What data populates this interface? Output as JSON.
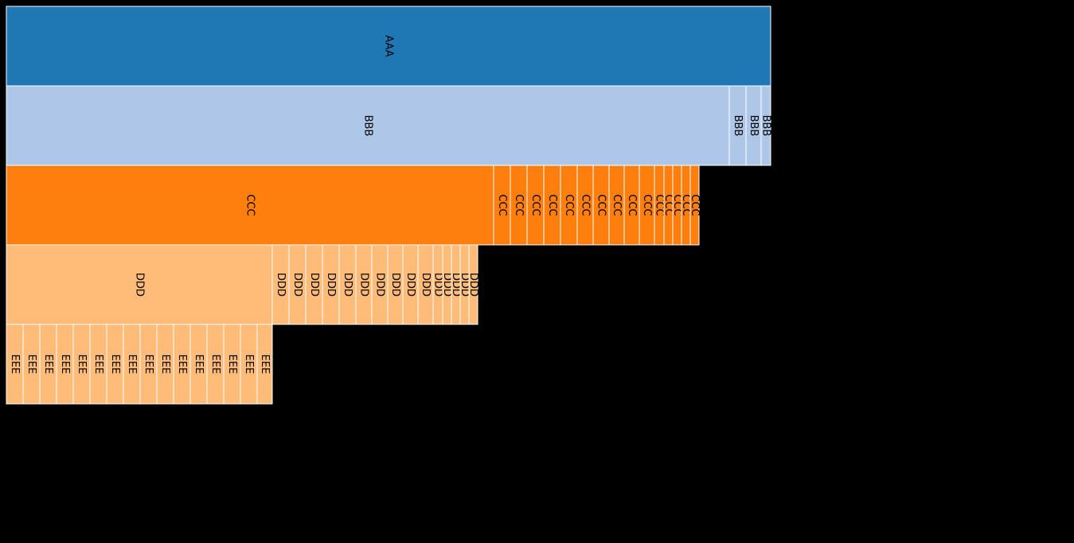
{
  "chart_data": {
    "type": "icicle",
    "colors": [
      "#1f77b4",
      "#aec7e8",
      "#ff7f0e",
      "#ffbb78"
    ],
    "levels": [
      {
        "name": "AAA",
        "color_index": 0,
        "nodes": [
          {
            "label": "AAA",
            "value": 960,
            "parent": null
          }
        ]
      },
      {
        "name": "BBB",
        "color_index": 1,
        "nodes": [
          {
            "label": "BBB",
            "value": 908,
            "parent": 0
          },
          {
            "label": "BBB",
            "value": 21,
            "parent": 0
          },
          {
            "label": "BBB",
            "value": 19,
            "parent": 0
          },
          {
            "label": "BBB",
            "value": 12,
            "parent": 0
          }
        ]
      },
      {
        "name": "CCC",
        "color_index": 2,
        "nodes": [
          {
            "label": "CCC",
            "value": 612,
            "parent": 0
          },
          {
            "label": "CCC",
            "value": 21,
            "parent": 0
          },
          {
            "label": "CCC",
            "value": 21,
            "parent": 0
          },
          {
            "label": "CCC",
            "value": 21,
            "parent": 0
          },
          {
            "label": "CCC",
            "value": 21,
            "parent": 0
          },
          {
            "label": "CCC",
            "value": 21,
            "parent": 0
          },
          {
            "label": "CCC",
            "value": 20,
            "parent": 0
          },
          {
            "label": "CCC",
            "value": 20,
            "parent": 0
          },
          {
            "label": "CCC",
            "value": 19,
            "parent": 0
          },
          {
            "label": "CCC",
            "value": 19,
            "parent": 0
          },
          {
            "label": "CCC",
            "value": 19,
            "parent": 0
          },
          {
            "label": "CCC",
            "value": 12,
            "parent": 0
          },
          {
            "label": "CCC",
            "value": 11,
            "parent": 0
          },
          {
            "label": "CCC",
            "value": 11,
            "parent": 0
          },
          {
            "label": "CCC",
            "value": 11,
            "parent": 0
          },
          {
            "label": "CCC",
            "value": 11,
            "parent": 0
          }
        ]
      },
      {
        "name": "DDD",
        "color_index": 3,
        "nodes": [
          {
            "label": "DDD",
            "value": 334,
            "parent": 0
          },
          {
            "label": "DDD",
            "value": 21,
            "parent": 0
          },
          {
            "label": "DDD",
            "value": 21,
            "parent": 0
          },
          {
            "label": "DDD",
            "value": 21,
            "parent": 0
          },
          {
            "label": "DDD",
            "value": 21,
            "parent": 0
          },
          {
            "label": "DDD",
            "value": 21,
            "parent": 0
          },
          {
            "label": "DDD",
            "value": 20,
            "parent": 0
          },
          {
            "label": "DDD",
            "value": 20,
            "parent": 0
          },
          {
            "label": "DDD",
            "value": 19,
            "parent": 0
          },
          {
            "label": "DDD",
            "value": 19,
            "parent": 0
          },
          {
            "label": "DDD",
            "value": 19,
            "parent": 0
          },
          {
            "label": "DDD",
            "value": 12,
            "parent": 0
          },
          {
            "label": "DDD",
            "value": 11,
            "parent": 0
          },
          {
            "label": "DDD",
            "value": 11,
            "parent": 0
          },
          {
            "label": "DDD",
            "value": 11,
            "parent": 0
          },
          {
            "label": "DDD",
            "value": 11,
            "parent": 0
          }
        ]
      },
      {
        "name": "EEE",
        "color_index": 3,
        "nodes": [
          {
            "label": "EEE",
            "value": 21,
            "parent": 0
          },
          {
            "label": "EEE",
            "value": 21,
            "parent": 0
          },
          {
            "label": "EEE",
            "value": 21,
            "parent": 0
          },
          {
            "label": "EEE",
            "value": 21,
            "parent": 0
          },
          {
            "label": "EEE",
            "value": 21,
            "parent": 0
          },
          {
            "label": "EEE",
            "value": 21,
            "parent": 0
          },
          {
            "label": "EEE",
            "value": 21,
            "parent": 0
          },
          {
            "label": "EEE",
            "value": 21,
            "parent": 0
          },
          {
            "label": "EEE",
            "value": 21,
            "parent": 0
          },
          {
            "label": "EEE",
            "value": 21,
            "parent": 0
          },
          {
            "label": "EEE",
            "value": 21,
            "parent": 0
          },
          {
            "label": "EEE",
            "value": 21,
            "parent": 0
          },
          {
            "label": "EEE",
            "value": 21,
            "parent": 0
          },
          {
            "label": "EEE",
            "value": 21,
            "parent": 0
          },
          {
            "label": "EEE",
            "value": 21,
            "parent": 0
          },
          {
            "label": "EEE",
            "value": 19,
            "parent": 0
          }
        ]
      }
    ]
  }
}
